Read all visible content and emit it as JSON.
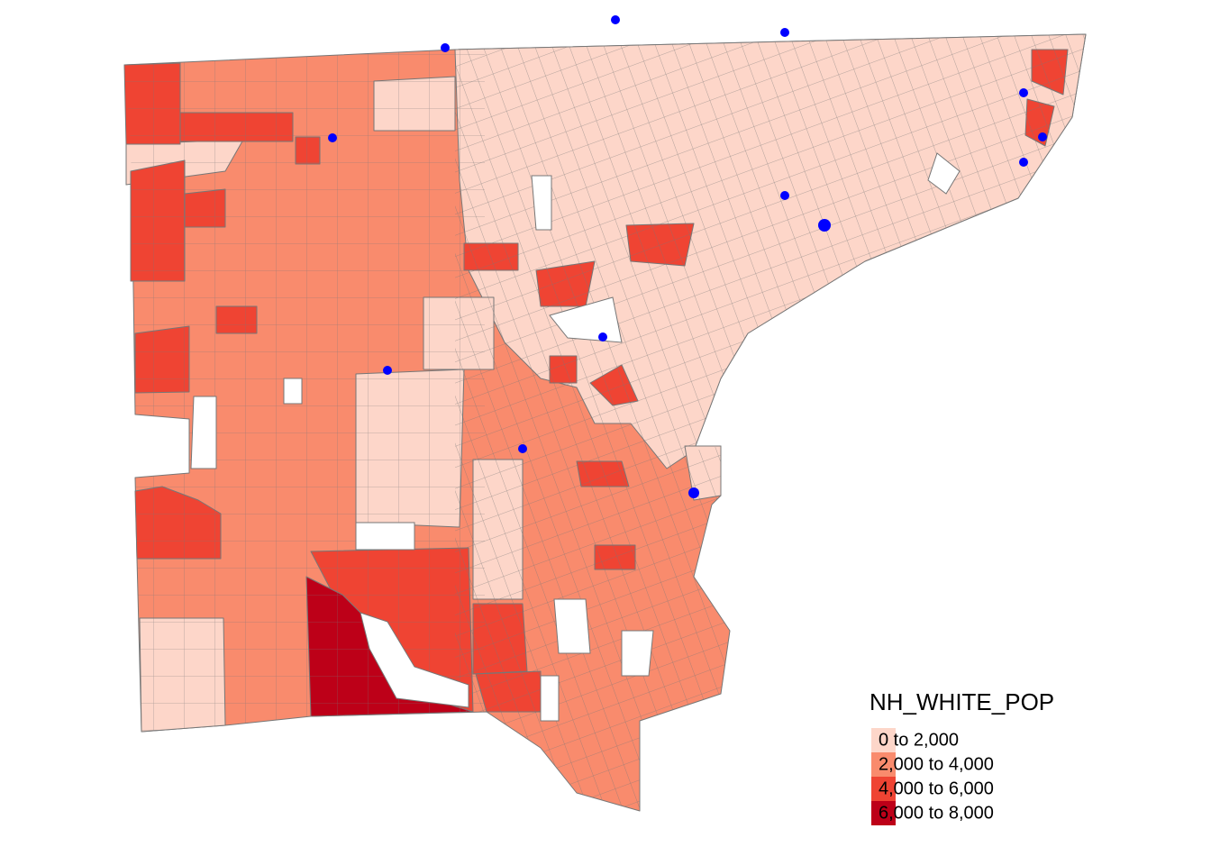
{
  "legend": {
    "title": "NH_WHITE_POP",
    "items": [
      {
        "label": "0 to 2,000",
        "color": "#fdd6c9"
      },
      {
        "label": "2,000 to 4,000",
        "color": "#f98b6d"
      },
      {
        "label": "4,000 to 6,000",
        "color": "#ef4433"
      },
      {
        "label": "6,000 to 8,000",
        "color": "#bd0018"
      }
    ]
  }
}
